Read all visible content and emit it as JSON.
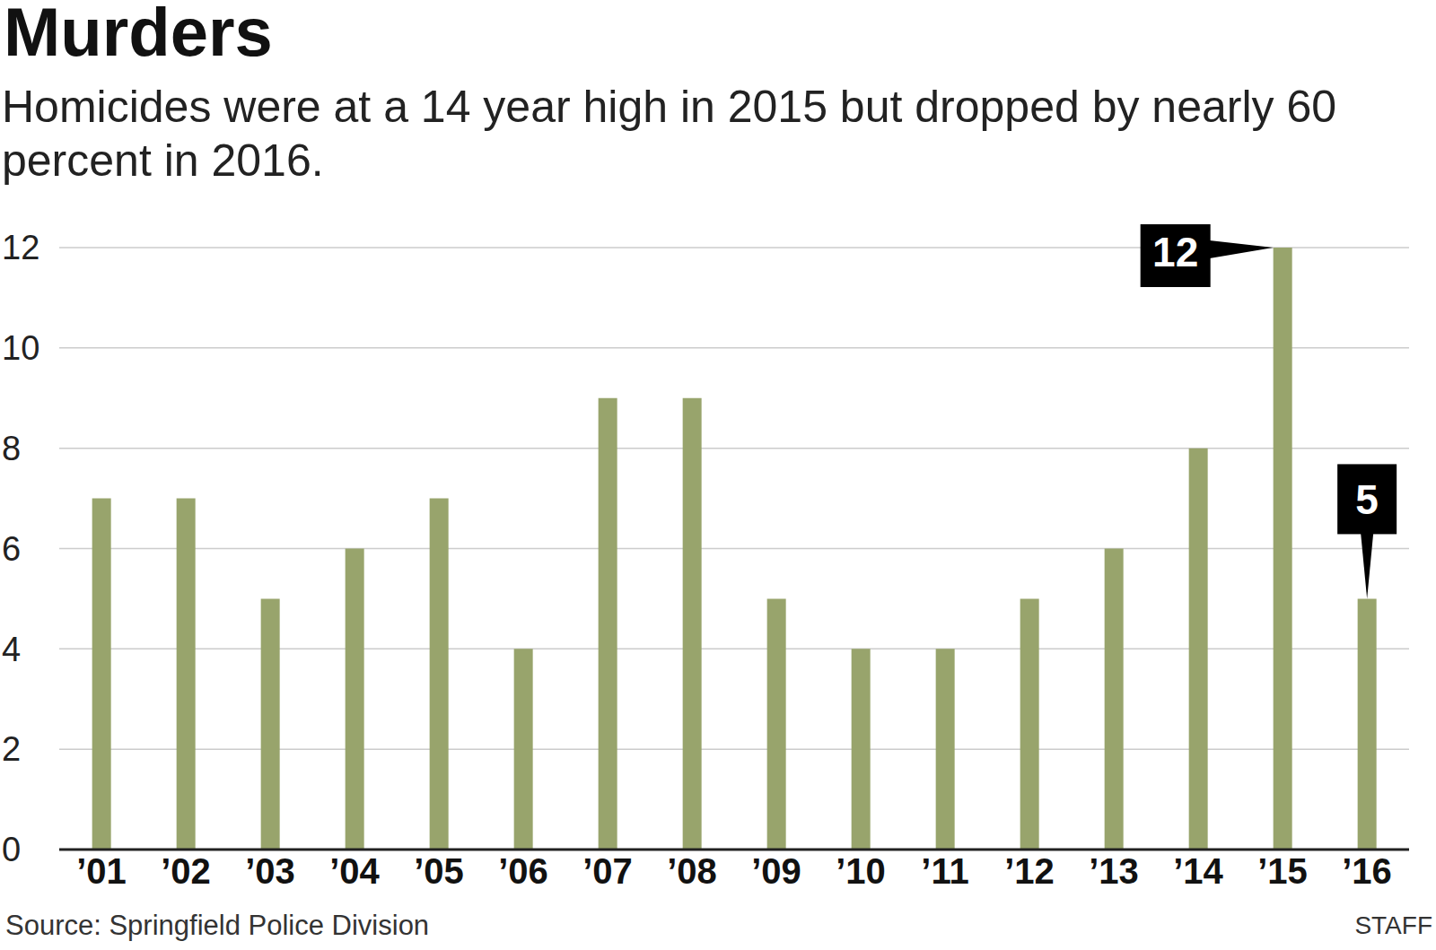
{
  "chart_data": {
    "type": "bar",
    "title": "Murders",
    "subtitle": "Homicides were at a 14 year high in 2015 but dropped by nearly 60 percent in 2016.",
    "categories": [
      "’01",
      "’02",
      "’03",
      "’04",
      "’05",
      "’06",
      "’07",
      "’08",
      "’09",
      "’10",
      "’11",
      "’12",
      "’13",
      "’14",
      "’15",
      "’16"
    ],
    "values": [
      7,
      7,
      5,
      6,
      7,
      4,
      9,
      9,
      5,
      4,
      4,
      5,
      6,
      8,
      12,
      5
    ],
    "color": "#98a46c",
    "ylim": [
      0,
      12
    ],
    "yticks": [
      0,
      2,
      4,
      6,
      8,
      10,
      12
    ],
    "grid": true,
    "annotations": [
      {
        "category": "’15",
        "text": "12"
      },
      {
        "category": "’16",
        "text": "5"
      }
    ],
    "source": "Source: Springfield Police Division",
    "credit": "STAFF"
  }
}
